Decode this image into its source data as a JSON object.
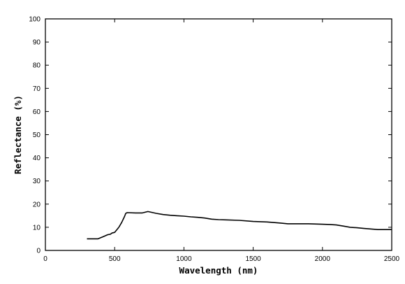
{
  "chart_data": {
    "type": "line",
    "xlabel": "Wavelength (nm)",
    "ylabel": "Reflectance (%)",
    "xlim": [
      0,
      2500
    ],
    "ylim": [
      0,
      100
    ],
    "xticks": [
      0,
      500,
      1000,
      1500,
      2000,
      2500
    ],
    "yticks": [
      0,
      10,
      20,
      30,
      40,
      50,
      60,
      70,
      80,
      90,
      100
    ],
    "xtick_labels": [
      "0",
      "500",
      "1000",
      "1500",
      "2000",
      "2500"
    ],
    "ytick_labels": [
      "0",
      "10",
      "20",
      "30",
      "40",
      "50",
      "60",
      "70",
      "80",
      "90",
      "100"
    ],
    "grid": false,
    "line_color": "#000000",
    "series": [
      {
        "x": [
          300,
          380,
          420,
          450,
          470,
          480,
          500,
          530,
          550,
          570,
          580,
          590,
          650,
          700,
          740,
          800,
          850,
          900,
          950,
          1000,
          1050,
          1100,
          1150,
          1200,
          1250,
          1300,
          1400,
          1500,
          1600,
          1700,
          1750,
          1800,
          1900,
          2000,
          2050,
          2100,
          2150,
          2200,
          2250,
          2300,
          2400,
          2500
        ],
        "y": [
          5.0,
          5.0,
          6.0,
          6.8,
          7.0,
          7.5,
          7.8,
          10.0,
          12.0,
          14.5,
          16.0,
          16.3,
          16.2,
          16.2,
          16.8,
          16.0,
          15.5,
          15.2,
          15.0,
          14.8,
          14.5,
          14.3,
          14.0,
          13.5,
          13.3,
          13.2,
          13.0,
          12.5,
          12.3,
          11.8,
          11.5,
          11.5,
          11.5,
          11.3,
          11.2,
          11.0,
          10.5,
          10.0,
          9.8,
          9.5,
          9.0,
          9.0
        ]
      }
    ]
  }
}
